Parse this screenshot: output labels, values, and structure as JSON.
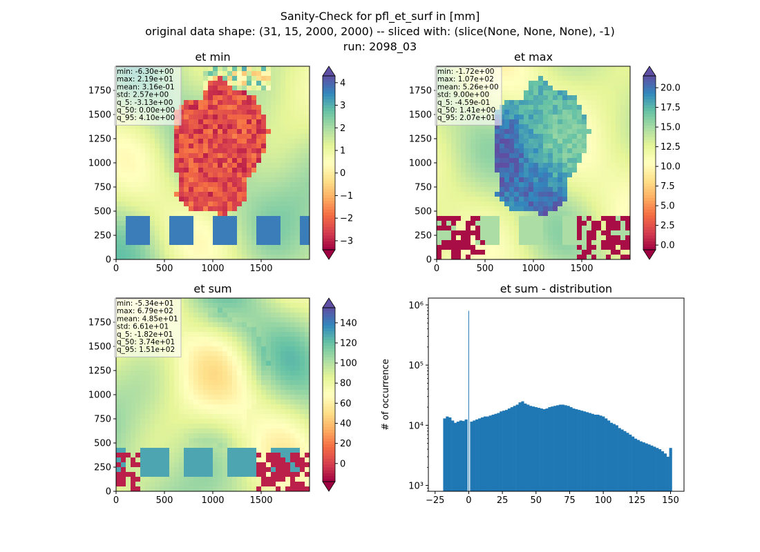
{
  "figure": {
    "title_lines": [
      "Sanity-Check for pfl_et_surf in [mm]",
      "original data shape: (31, 15, 2000, 2000) -- sliced with: (slice(None, None, None), -1)",
      "run: 2098_03"
    ]
  },
  "colormap": {
    "name": "Spectral",
    "stops": [
      "#9e0142",
      "#d53e4f",
      "#f46d43",
      "#fdae61",
      "#fee08b",
      "#ffffbf",
      "#e6f598",
      "#abdda4",
      "#66c2a5",
      "#3288bd",
      "#5e4fa2"
    ]
  },
  "chart_data": [
    {
      "type": "heatmap",
      "title": "et min",
      "x_ticks": [
        "0",
        "500",
        "1000",
        "1500"
      ],
      "x_tick_values": [
        0,
        500,
        1000,
        1500
      ],
      "y_ticks": [
        "0",
        "250",
        "500",
        "750",
        "1000",
        "1250",
        "1500",
        "1750"
      ],
      "y_tick_values": [
        0,
        250,
        500,
        750,
        1000,
        1250,
        1500,
        1750
      ],
      "xlim": [
        0,
        2000
      ],
      "ylim": [
        0,
        2000
      ],
      "colorbar": {
        "vmin": -3.4,
        "vmax": 4.3,
        "extend": "both",
        "ticks": [
          "−3",
          "−2",
          "−1",
          "0",
          "1",
          "2",
          "3",
          "4"
        ],
        "tick_values": [
          -3,
          -2,
          -1,
          0,
          1,
          2,
          3,
          4
        ]
      },
      "stats": [
        "min: -6.30e+00",
        "max: 2.19e+01",
        "mean: 3.16e-01",
        "std: 2.57e+00",
        "q_5: -3.13e+00",
        "q_50: 0.00e+00",
        "q_95: 4.10e+00"
      ]
    },
    {
      "type": "heatmap",
      "title": "et max",
      "x_ticks": [
        "0",
        "500",
        "1000",
        "1500"
      ],
      "x_tick_values": [
        0,
        500,
        1000,
        1500
      ],
      "y_ticks": [
        "0",
        "250",
        "500",
        "750",
        "1000",
        "1250",
        "1500",
        "1750"
      ],
      "y_tick_values": [
        0,
        250,
        500,
        750,
        1000,
        1250,
        1500,
        1750
      ],
      "xlim": [
        0,
        2000
      ],
      "ylim": [
        0,
        2000
      ],
      "colorbar": {
        "vmin": -0.6,
        "vmax": 21.5,
        "extend": "both",
        "ticks": [
          "0.0",
          "2.5",
          "5.0",
          "7.5",
          "10.0",
          "12.5",
          "15.0",
          "17.5",
          "20.0"
        ],
        "tick_values": [
          0,
          2.5,
          5,
          7.5,
          10,
          12.5,
          15,
          17.5,
          20
        ]
      },
      "stats": [
        "min: -1.72e+00",
        "max: 1.07e+02",
        "mean: 5.26e+00",
        "std: 9.00e+00",
        "q_5: -4.59e-01",
        "q_50: 1.41e+00",
        "q_95: 2.07e+01"
      ]
    },
    {
      "type": "heatmap",
      "title": "et sum",
      "x_ticks": [
        "0",
        "500",
        "1000",
        "1500"
      ],
      "x_tick_values": [
        0,
        500,
        1000,
        1500
      ],
      "y_ticks": [
        "0",
        "250",
        "500",
        "750",
        "1000",
        "1250",
        "1500",
        "1750"
      ],
      "y_tick_values": [
        0,
        250,
        500,
        750,
        1000,
        1250,
        1500,
        1750
      ],
      "xlim": [
        0,
        2000
      ],
      "ylim": [
        0,
        2000
      ],
      "colorbar": {
        "vmin": -18,
        "vmax": 155,
        "extend": "both",
        "ticks": [
          "0",
          "20",
          "40",
          "60",
          "80",
          "100",
          "120",
          "140"
        ],
        "tick_values": [
          0,
          20,
          40,
          60,
          80,
          100,
          120,
          140
        ]
      },
      "stats": [
        "min: -5.34e+01",
        "max: 6.79e+02",
        "mean: 4.85e+01",
        "std: 6.61e+01",
        "q_5: -1.82e+01",
        "q_50: 3.74e+01",
        "q_95: 1.51e+02"
      ]
    },
    {
      "type": "bar",
      "title": "et sum - distribution",
      "ylabel": "# of occurrence",
      "yscale": "log",
      "xlim": [
        -30,
        160
      ],
      "ylim": [
        800,
        1300000
      ],
      "x_ticks": [
        "−25",
        "0",
        "25",
        "50",
        "75",
        "100",
        "125",
        "150"
      ],
      "x_tick_values": [
        -25,
        0,
        25,
        50,
        75,
        100,
        125,
        150
      ],
      "y_ticks": [
        "10³",
        "10⁴",
        "10⁵",
        "10⁶"
      ],
      "y_tick_values": [
        1000,
        10000,
        100000,
        1000000
      ],
      "bar_color": "#1f77b4",
      "bins": [
        {
          "x": -18,
          "y": 13000
        },
        {
          "x": -16,
          "y": 14000
        },
        {
          "x": -14,
          "y": 13500
        },
        {
          "x": -12,
          "y": 12000
        },
        {
          "x": -10,
          "y": 11000
        },
        {
          "x": -8,
          "y": 11500
        },
        {
          "x": -6,
          "y": 12000
        },
        {
          "x": -4,
          "y": 11800
        },
        {
          "x": -2,
          "y": 12500
        },
        {
          "x": 0,
          "y": 800000
        },
        {
          "x": 2,
          "y": 11500
        },
        {
          "x": 4,
          "y": 12000
        },
        {
          "x": 6,
          "y": 12500
        },
        {
          "x": 8,
          "y": 13000
        },
        {
          "x": 10,
          "y": 13500
        },
        {
          "x": 12,
          "y": 14000
        },
        {
          "x": 14,
          "y": 14000
        },
        {
          "x": 16,
          "y": 14500
        },
        {
          "x": 18,
          "y": 15000
        },
        {
          "x": 20,
          "y": 15500
        },
        {
          "x": 22,
          "y": 16000
        },
        {
          "x": 24,
          "y": 17000
        },
        {
          "x": 26,
          "y": 17500
        },
        {
          "x": 28,
          "y": 18000
        },
        {
          "x": 30,
          "y": 19000
        },
        {
          "x": 32,
          "y": 20000
        },
        {
          "x": 34,
          "y": 21000
        },
        {
          "x": 36,
          "y": 22000
        },
        {
          "x": 38,
          "y": 24000
        },
        {
          "x": 40,
          "y": 25000
        },
        {
          "x": 42,
          "y": 23000
        },
        {
          "x": 44,
          "y": 22000
        },
        {
          "x": 46,
          "y": 21000
        },
        {
          "x": 48,
          "y": 20500
        },
        {
          "x": 50,
          "y": 20000
        },
        {
          "x": 52,
          "y": 19500
        },
        {
          "x": 54,
          "y": 19000
        },
        {
          "x": 56,
          "y": 18500
        },
        {
          "x": 58,
          "y": 19000
        },
        {
          "x": 60,
          "y": 20000
        },
        {
          "x": 62,
          "y": 20500
        },
        {
          "x": 64,
          "y": 21000
        },
        {
          "x": 66,
          "y": 21500
        },
        {
          "x": 68,
          "y": 22000
        },
        {
          "x": 70,
          "y": 22000
        },
        {
          "x": 72,
          "y": 21500
        },
        {
          "x": 74,
          "y": 21000
        },
        {
          "x": 76,
          "y": 20000
        },
        {
          "x": 78,
          "y": 19000
        },
        {
          "x": 80,
          "y": 18500
        },
        {
          "x": 82,
          "y": 18000
        },
        {
          "x": 84,
          "y": 17500
        },
        {
          "x": 86,
          "y": 17000
        },
        {
          "x": 88,
          "y": 16500
        },
        {
          "x": 90,
          "y": 16000
        },
        {
          "x": 92,
          "y": 15500
        },
        {
          "x": 94,
          "y": 15000
        },
        {
          "x": 96,
          "y": 15000
        },
        {
          "x": 98,
          "y": 14500
        },
        {
          "x": 100,
          "y": 14000
        },
        {
          "x": 102,
          "y": 13000
        },
        {
          "x": 104,
          "y": 12000
        },
        {
          "x": 106,
          "y": 11000
        },
        {
          "x": 108,
          "y": 10500
        },
        {
          "x": 110,
          "y": 10000
        },
        {
          "x": 112,
          "y": 9000
        },
        {
          "x": 114,
          "y": 8500
        },
        {
          "x": 116,
          "y": 8000
        },
        {
          "x": 118,
          "y": 7500
        },
        {
          "x": 120,
          "y": 7000
        },
        {
          "x": 122,
          "y": 6500
        },
        {
          "x": 124,
          "y": 6000
        },
        {
          "x": 126,
          "y": 5700
        },
        {
          "x": 128,
          "y": 5400
        },
        {
          "x": 130,
          "y": 5200
        },
        {
          "x": 132,
          "y": 5000
        },
        {
          "x": 134,
          "y": 4800
        },
        {
          "x": 136,
          "y": 4600
        },
        {
          "x": 138,
          "y": 4400
        },
        {
          "x": 140,
          "y": 4200
        },
        {
          "x": 142,
          "y": 4000
        },
        {
          "x": 144,
          "y": 3700
        },
        {
          "x": 146,
          "y": 3400
        },
        {
          "x": 148,
          "y": 3000
        },
        {
          "x": 150,
          "y": 4200
        }
      ]
    }
  ]
}
